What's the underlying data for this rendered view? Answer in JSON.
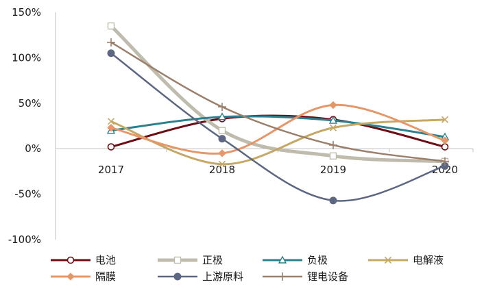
{
  "chart_data": {
    "type": "line",
    "title": "",
    "xlabel": "",
    "ylabel": "",
    "categories": [
      "2017",
      "2018",
      "2019",
      "2020"
    ],
    "ylim": [
      -100,
      150
    ],
    "yticks": [
      150,
      100,
      50,
      0,
      -50,
      -100
    ],
    "ytick_labels": [
      "150%",
      "100%",
      "50%",
      "0%",
      "-50%",
      "-100%"
    ],
    "y_unit": "%",
    "grid": false,
    "legend_position": "bottom",
    "series": [
      {
        "name": "电池",
        "values": [
          2,
          33,
          32,
          2
        ],
        "color": "#6b0d12",
        "marker": "circle-open"
      },
      {
        "name": "正极",
        "values": [
          135,
          20,
          -8,
          -14
        ],
        "color": "#bfbcad",
        "marker": "square-open"
      },
      {
        "name": "负极",
        "values": [
          20,
          35,
          31,
          13
        ],
        "color": "#2e7f8c",
        "marker": "triangle-open"
      },
      {
        "name": "电解液",
        "values": [
          30,
          -17,
          23,
          32
        ],
        "color": "#c5a865",
        "marker": "x"
      },
      {
        "name": "隔膜",
        "values": [
          23,
          -5,
          48,
          9
        ],
        "color": "#e5976a",
        "marker": "diamond"
      },
      {
        "name": "上游原料",
        "values": [
          105,
          11,
          -57,
          -19
        ],
        "color": "#5d6782",
        "marker": "circle"
      },
      {
        "name": "锂电设备",
        "values": [
          117,
          46,
          4,
          -14
        ],
        "color": "#9b7f6b",
        "marker": "plus"
      }
    ]
  }
}
